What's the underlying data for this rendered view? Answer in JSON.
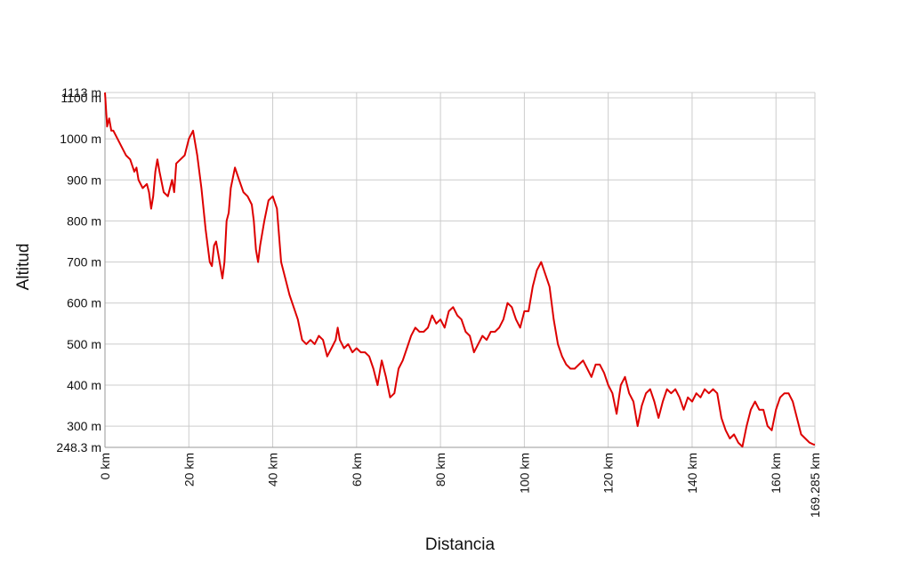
{
  "chart_data": {
    "type": "line",
    "xlabel": "Distancia",
    "ylabel": "Altitud",
    "xlim": [
      0,
      169.285
    ],
    "ylim": [
      248.3,
      1113
    ],
    "grid": true,
    "x_ticks": [
      {
        "value": 0,
        "label": "0 km"
      },
      {
        "value": 20,
        "label": "20 km"
      },
      {
        "value": 40,
        "label": "40 km"
      },
      {
        "value": 60,
        "label": "60 km"
      },
      {
        "value": 80,
        "label": "80 km"
      },
      {
        "value": 100,
        "label": "100 km"
      },
      {
        "value": 120,
        "label": "120 km"
      },
      {
        "value": 140,
        "label": "140 km"
      },
      {
        "value": 160,
        "label": "160 km"
      },
      {
        "value": 169.285,
        "label": "169.285 km"
      }
    ],
    "y_ticks": [
      {
        "value": 248.3,
        "label": "248.3 m"
      },
      {
        "value": 300,
        "label": "300 m"
      },
      {
        "value": 400,
        "label": "400 m"
      },
      {
        "value": 500,
        "label": "500 m"
      },
      {
        "value": 600,
        "label": "600 m"
      },
      {
        "value": 700,
        "label": "700 m"
      },
      {
        "value": 800,
        "label": "800 m"
      },
      {
        "value": 900,
        "label": "900 m"
      },
      {
        "value": 1000,
        "label": "1000 m"
      },
      {
        "value": 1100,
        "label": "1100 m"
      },
      {
        "value": 1113,
        "label": "1113 m"
      }
    ],
    "series": [
      {
        "color": "#dd0000",
        "points": [
          [
            0,
            1113
          ],
          [
            0.5,
            1030
          ],
          [
            1,
            1050
          ],
          [
            1.5,
            1020
          ],
          [
            2,
            1020
          ],
          [
            3,
            1000
          ],
          [
            4,
            980
          ],
          [
            5,
            960
          ],
          [
            6,
            950
          ],
          [
            7,
            920
          ],
          [
            7.5,
            930
          ],
          [
            8,
            900
          ],
          [
            9,
            880
          ],
          [
            10,
            890
          ],
          [
            10.5,
            870
          ],
          [
            11,
            830
          ],
          [
            11.5,
            860
          ],
          [
            12,
            920
          ],
          [
            12.5,
            950
          ],
          [
            13,
            920
          ],
          [
            14,
            870
          ],
          [
            15,
            860
          ],
          [
            16,
            900
          ],
          [
            16.5,
            870
          ],
          [
            17,
            940
          ],
          [
            18,
            950
          ],
          [
            19,
            960
          ],
          [
            20,
            1000
          ],
          [
            21,
            1020
          ],
          [
            22,
            960
          ],
          [
            23,
            880
          ],
          [
            24,
            780
          ],
          [
            25,
            700
          ],
          [
            25.5,
            690
          ],
          [
            26,
            740
          ],
          [
            26.5,
            750
          ],
          [
            27,
            720
          ],
          [
            28,
            660
          ],
          [
            28.5,
            700
          ],
          [
            29,
            800
          ],
          [
            29.5,
            820
          ],
          [
            30,
            880
          ],
          [
            31,
            930
          ],
          [
            32,
            900
          ],
          [
            33,
            870
          ],
          [
            34,
            860
          ],
          [
            35,
            840
          ],
          [
            35.5,
            800
          ],
          [
            36,
            730
          ],
          [
            36.5,
            700
          ],
          [
            37,
            740
          ],
          [
            38,
            800
          ],
          [
            39,
            850
          ],
          [
            40,
            860
          ],
          [
            41,
            830
          ],
          [
            42,
            700
          ],
          [
            43,
            660
          ],
          [
            44,
            620
          ],
          [
            45,
            590
          ],
          [
            46,
            560
          ],
          [
            47,
            510
          ],
          [
            48,
            500
          ],
          [
            49,
            510
          ],
          [
            50,
            500
          ],
          [
            51,
            520
          ],
          [
            52,
            510
          ],
          [
            53,
            470
          ],
          [
            54,
            490
          ],
          [
            55,
            510
          ],
          [
            55.5,
            540
          ],
          [
            56,
            510
          ],
          [
            57,
            490
          ],
          [
            58,
            500
          ],
          [
            59,
            480
          ],
          [
            60,
            490
          ],
          [
            61,
            480
          ],
          [
            62,
            480
          ],
          [
            63,
            470
          ],
          [
            64,
            440
          ],
          [
            65,
            400
          ],
          [
            66,
            460
          ],
          [
            67,
            420
          ],
          [
            68,
            370
          ],
          [
            69,
            380
          ],
          [
            70,
            440
          ],
          [
            71,
            460
          ],
          [
            72,
            490
          ],
          [
            73,
            520
          ],
          [
            74,
            540
          ],
          [
            75,
            530
          ],
          [
            76,
            530
          ],
          [
            77,
            540
          ],
          [
            78,
            570
          ],
          [
            79,
            550
          ],
          [
            80,
            560
          ],
          [
            81,
            540
          ],
          [
            82,
            580
          ],
          [
            83,
            590
          ],
          [
            84,
            570
          ],
          [
            85,
            560
          ],
          [
            86,
            530
          ],
          [
            87,
            520
          ],
          [
            88,
            480
          ],
          [
            89,
            500
          ],
          [
            90,
            520
          ],
          [
            91,
            510
          ],
          [
            92,
            530
          ],
          [
            93,
            530
          ],
          [
            94,
            540
          ],
          [
            95,
            560
          ],
          [
            96,
            600
          ],
          [
            97,
            590
          ],
          [
            98,
            560
          ],
          [
            99,
            540
          ],
          [
            100,
            580
          ],
          [
            101,
            580
          ],
          [
            102,
            640
          ],
          [
            103,
            680
          ],
          [
            104,
            700
          ],
          [
            105,
            670
          ],
          [
            106,
            640
          ],
          [
            107,
            560
          ],
          [
            108,
            500
          ],
          [
            109,
            470
          ],
          [
            110,
            450
          ],
          [
            111,
            440
          ],
          [
            112,
            440
          ],
          [
            113,
            450
          ],
          [
            114,
            460
          ],
          [
            115,
            440
          ],
          [
            116,
            420
          ],
          [
            117,
            450
          ],
          [
            118,
            450
          ],
          [
            119,
            430
          ],
          [
            120,
            400
          ],
          [
            121,
            380
          ],
          [
            122,
            330
          ],
          [
            123,
            400
          ],
          [
            124,
            420
          ],
          [
            125,
            380
          ],
          [
            126,
            360
          ],
          [
            127,
            300
          ],
          [
            128,
            350
          ],
          [
            129,
            380
          ],
          [
            130,
            390
          ],
          [
            131,
            360
          ],
          [
            132,
            320
          ],
          [
            133,
            360
          ],
          [
            134,
            390
          ],
          [
            135,
            380
          ],
          [
            136,
            390
          ],
          [
            137,
            370
          ],
          [
            138,
            340
          ],
          [
            139,
            370
          ],
          [
            140,
            360
          ],
          [
            141,
            380
          ],
          [
            142,
            370
          ],
          [
            143,
            390
          ],
          [
            144,
            380
          ],
          [
            145,
            390
          ],
          [
            146,
            380
          ],
          [
            147,
            320
          ],
          [
            148,
            290
          ],
          [
            149,
            270
          ],
          [
            150,
            280
          ],
          [
            151,
            260
          ],
          [
            152,
            250
          ],
          [
            153,
            300
          ],
          [
            154,
            340
          ],
          [
            155,
            360
          ],
          [
            156,
            340
          ],
          [
            157,
            340
          ],
          [
            158,
            300
          ],
          [
            159,
            290
          ],
          [
            160,
            340
          ],
          [
            161,
            370
          ],
          [
            162,
            380
          ],
          [
            163,
            380
          ],
          [
            164,
            360
          ],
          [
            165,
            320
          ],
          [
            166,
            280
          ],
          [
            167,
            270
          ],
          [
            168,
            260
          ],
          [
            169,
            255
          ],
          [
            169.285,
            255
          ]
        ]
      }
    ]
  }
}
